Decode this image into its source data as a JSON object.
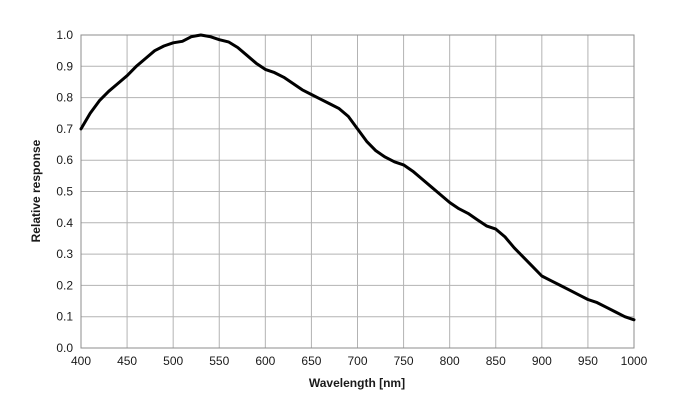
{
  "chart_data": {
    "type": "line",
    "title": "",
    "xlabel": "Wavelength [nm]",
    "ylabel": "Relative response",
    "xlim": [
      400,
      1000
    ],
    "ylim": [
      0,
      1.0
    ],
    "x_ticks": [
      "400",
      "450",
      "500",
      "550",
      "600",
      "650",
      "700",
      "750",
      "800",
      "850",
      "900",
      "950",
      "1000"
    ],
    "y_ticks": [
      "0.0",
      "0.1",
      "0.2",
      "0.3",
      "0.4",
      "0.5",
      "0.6",
      "0.7",
      "0.8",
      "0.9",
      "1.0"
    ],
    "grid": true,
    "legend": "none",
    "line_color": "#000000",
    "grid_color": "#b3b3b3",
    "series": [
      {
        "x": [
          400,
          410,
          420,
          430,
          440,
          450,
          460,
          470,
          480,
          490,
          500,
          510,
          520,
          530,
          540,
          550,
          560,
          570,
          580,
          590,
          600,
          610,
          620,
          630,
          640,
          650,
          660,
          670,
          680,
          690,
          700,
          710,
          720,
          730,
          740,
          750,
          760,
          770,
          780,
          790,
          800,
          810,
          820,
          830,
          840,
          850,
          860,
          870,
          880,
          890,
          900,
          910,
          920,
          930,
          940,
          950,
          960,
          970,
          980,
          990,
          1000
        ],
        "y": [
          0.7,
          0.75,
          0.79,
          0.82,
          0.845,
          0.87,
          0.9,
          0.925,
          0.95,
          0.965,
          0.975,
          0.98,
          0.995,
          1.0,
          0.995,
          0.985,
          0.978,
          0.96,
          0.935,
          0.91,
          0.89,
          0.88,
          0.865,
          0.845,
          0.825,
          0.81,
          0.795,
          0.78,
          0.765,
          0.74,
          0.7,
          0.66,
          0.63,
          0.61,
          0.595,
          0.585,
          0.565,
          0.54,
          0.515,
          0.49,
          0.465,
          0.445,
          0.43,
          0.41,
          0.39,
          0.38,
          0.355,
          0.32,
          0.29,
          0.26,
          0.23,
          0.215,
          0.2,
          0.185,
          0.17,
          0.155,
          0.145,
          0.13,
          0.115,
          0.1,
          0.09
        ]
      }
    ]
  }
}
